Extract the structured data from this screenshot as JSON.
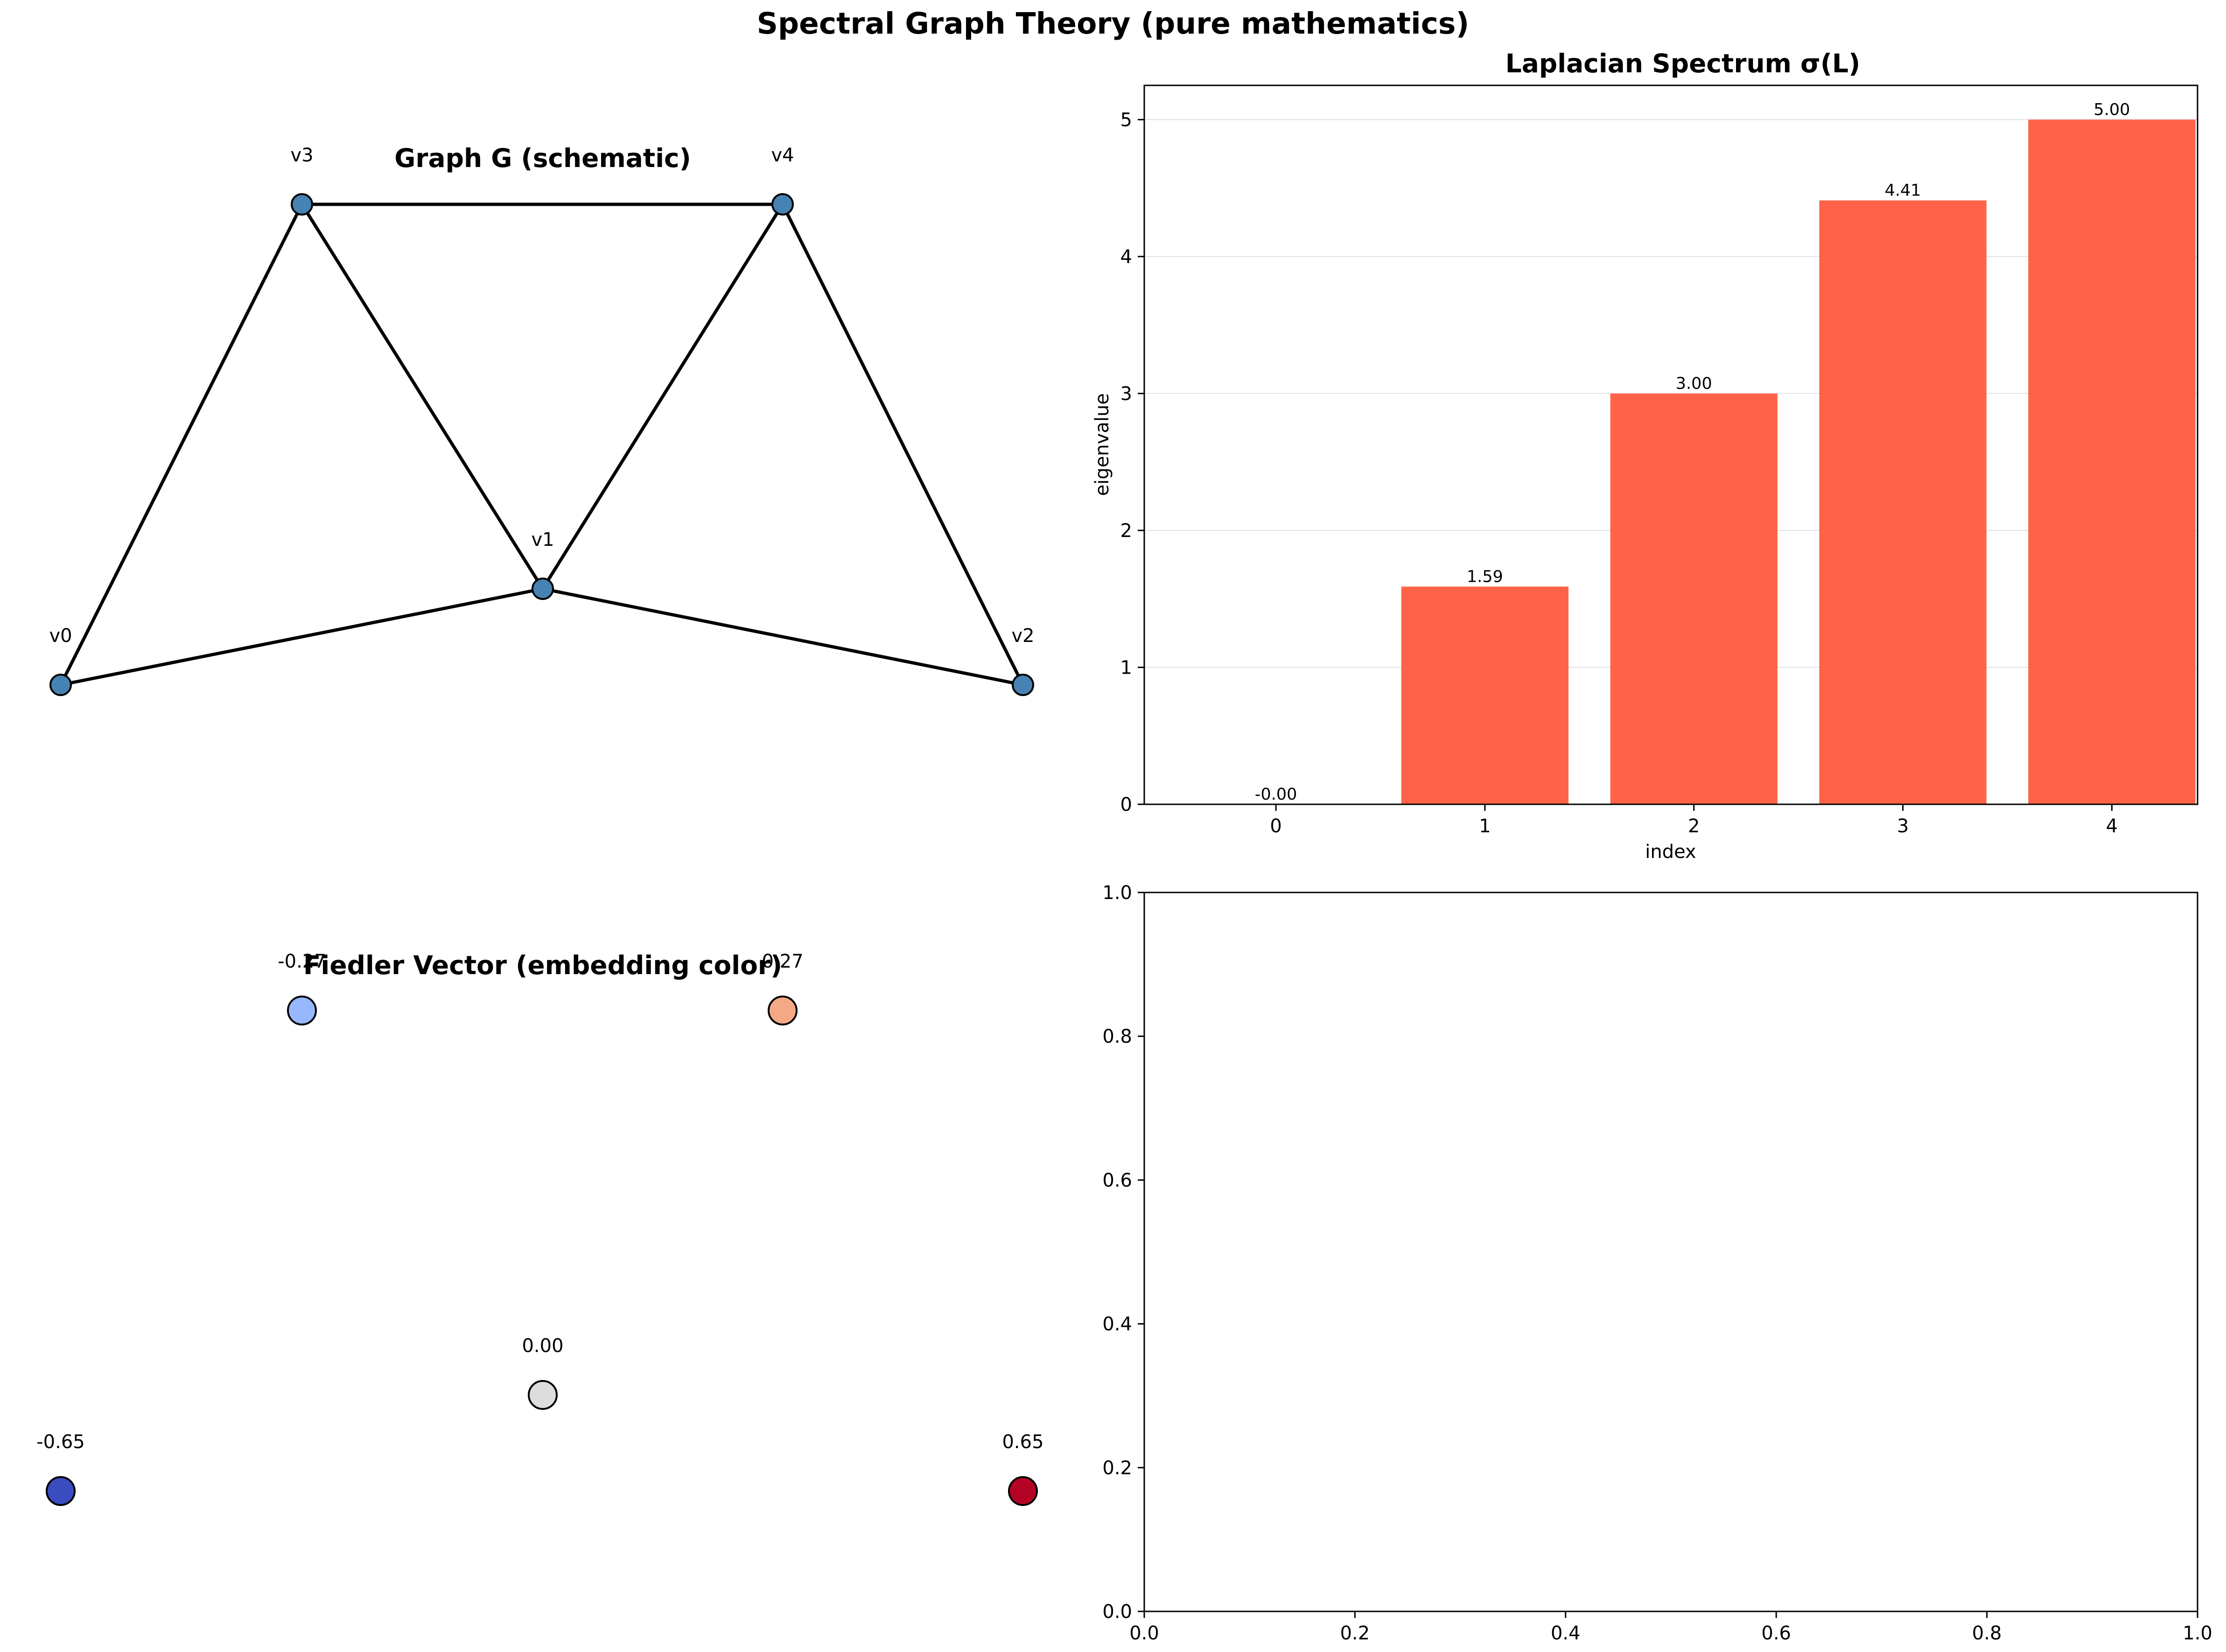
{
  "figure": {
    "title": "Spectral Graph Theory (pure mathematics)"
  },
  "chart_data": [
    {
      "type": "network",
      "title": "Graph G (schematic)",
      "nodes": [
        {
          "id": "v0",
          "label": "v0"
        },
        {
          "id": "v1",
          "label": "v1"
        },
        {
          "id": "v2",
          "label": "v2"
        },
        {
          "id": "v3",
          "label": "v3"
        },
        {
          "id": "v4",
          "label": "v4"
        }
      ],
      "edges": [
        [
          "v0",
          "v3"
        ],
        [
          "v0",
          "v1"
        ],
        [
          "v3",
          "v1"
        ],
        [
          "v3",
          "v4"
        ],
        [
          "v1",
          "v4"
        ],
        [
          "v1",
          "v2"
        ],
        [
          "v4",
          "v2"
        ]
      ],
      "node_color": "#4682b4"
    },
    {
      "type": "bar",
      "title": "Laplacian Spectrum σ(L)",
      "xlabel": "index",
      "ylabel": "eigenvalue",
      "categories": [
        "0",
        "1",
        "2",
        "3",
        "4"
      ],
      "values": [
        -0.0,
        1.59,
        3.0,
        4.41,
        5.0
      ],
      "value_labels": [
        "-0.00",
        "1.59",
        "3.00",
        "4.41",
        "5.00"
      ],
      "ylim": [
        0,
        5.25
      ],
      "yticks": [
        "0",
        "1",
        "2",
        "3",
        "4",
        "5"
      ],
      "grid": "y",
      "bar_color": "#ff6347"
    },
    {
      "type": "scatter",
      "title": "Fiedler Vector (embedding color)",
      "points": [
        {
          "node": "v0",
          "value": -0.65,
          "label": "-0.65",
          "color": "#3b4cc0"
        },
        {
          "node": "v1",
          "value": 0.0,
          "label": "0.00",
          "color": "#dddddd"
        },
        {
          "node": "v2",
          "value": 0.65,
          "label": "0.65",
          "color": "#b40426"
        },
        {
          "node": "v3",
          "value": -0.27,
          "label": "-0.27",
          "color": "#97b8ff"
        },
        {
          "node": "v4",
          "value": 0.27,
          "label": "0.27",
          "color": "#f4a886"
        }
      ],
      "colormap": "coolwarm"
    },
    {
      "type": "empty",
      "xlim": [
        0,
        1
      ],
      "ylim": [
        0,
        1
      ],
      "xticks": [
        "0.0",
        "0.2",
        "0.4",
        "0.6",
        "0.8",
        "1.0"
      ],
      "yticks": [
        "0.0",
        "0.2",
        "0.4",
        "0.6",
        "0.8",
        "1.0"
      ]
    }
  ]
}
